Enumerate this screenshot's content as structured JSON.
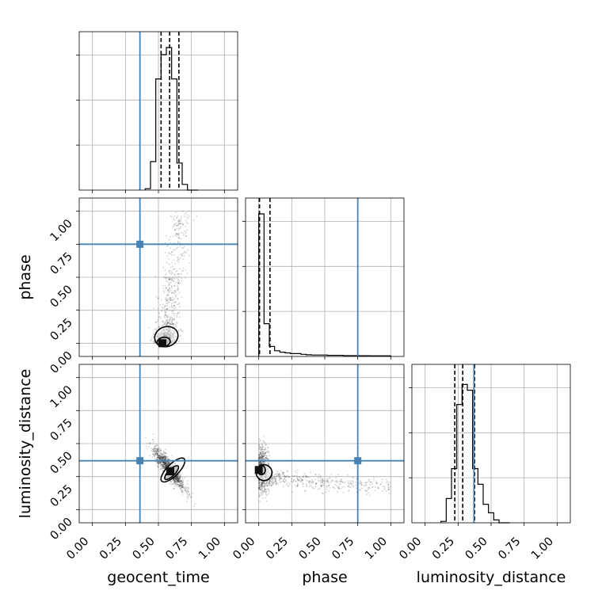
{
  "chart_data": {
    "type": "corner",
    "parameters": [
      "geocent_time",
      "phase",
      "luminosity_distance"
    ],
    "truths": {
      "geocent_time": 0.36,
      "phase": 0.75,
      "luminosity_distance": 0.37
    },
    "axis_range": [
      -0.1,
      1.1
    ],
    "ticks": [
      0.0,
      0.25,
      0.5,
      0.75,
      1.0
    ],
    "tick_labels": [
      "0.00",
      "0.25",
      "0.50",
      "0.75",
      "1.00"
    ],
    "grid": true,
    "truth_color": "#4682b4",
    "contour_color": "#000000",
    "histograms": {
      "geocent_time": {
        "bins": [
          0.4,
          0.44,
          0.48,
          0.52,
          0.56,
          0.6,
          0.64,
          0.68,
          0.72,
          0.76,
          0.8
        ],
        "counts": [
          0.01,
          0.2,
          0.78,
          0.95,
          1.0,
          0.78,
          0.19,
          0.04,
          0.0,
          0.0
        ],
        "quantiles": [
          0.52,
          0.585,
          0.655
        ]
      },
      "phase": {
        "bins": [
          0.0,
          0.04,
          0.08,
          0.12,
          0.16,
          0.2,
          0.24,
          0.28,
          0.32,
          0.36,
          0.4,
          0.44,
          0.48,
          0.52,
          0.56,
          0.6,
          0.64,
          0.68,
          0.72,
          0.76,
          0.8,
          0.84,
          0.88,
          0.92,
          0.96,
          1.0
        ],
        "counts": [
          1.0,
          0.23,
          0.07,
          0.04,
          0.03,
          0.025,
          0.02,
          0.02,
          0.015,
          0.012,
          0.01,
          0.01,
          0.01,
          0.008,
          0.008,
          0.008,
          0.006,
          0.006,
          0.006,
          0.005,
          0.005,
          0.004,
          0.004,
          0.004,
          0.004
        ],
        "quantiles": [
          0.005,
          0.005,
          0.085
        ]
      },
      "luminosity_distance": {
        "bins": [
          0.12,
          0.16,
          0.2,
          0.24,
          0.28,
          0.32,
          0.36,
          0.4,
          0.44,
          0.48,
          0.52,
          0.56,
          0.6,
          0.64
        ],
        "counts": [
          0.01,
          0.17,
          0.38,
          0.83,
          0.97,
          0.93,
          0.38,
          0.27,
          0.13,
          0.07,
          0.02,
          0.0,
          0.0
        ],
        "quantiles": [
          0.225,
          0.285,
          0.375
        ]
      }
    },
    "joint_peaks": {
      "geocent_time|phase": {
        "center": [
          0.53,
          0.0
        ]
      },
      "geocent_time|luminosity_distance": {
        "center": [
          0.59,
          0.29
        ]
      },
      "phase|luminosity_distance": {
        "center": [
          0.0,
          0.3
        ]
      }
    }
  }
}
